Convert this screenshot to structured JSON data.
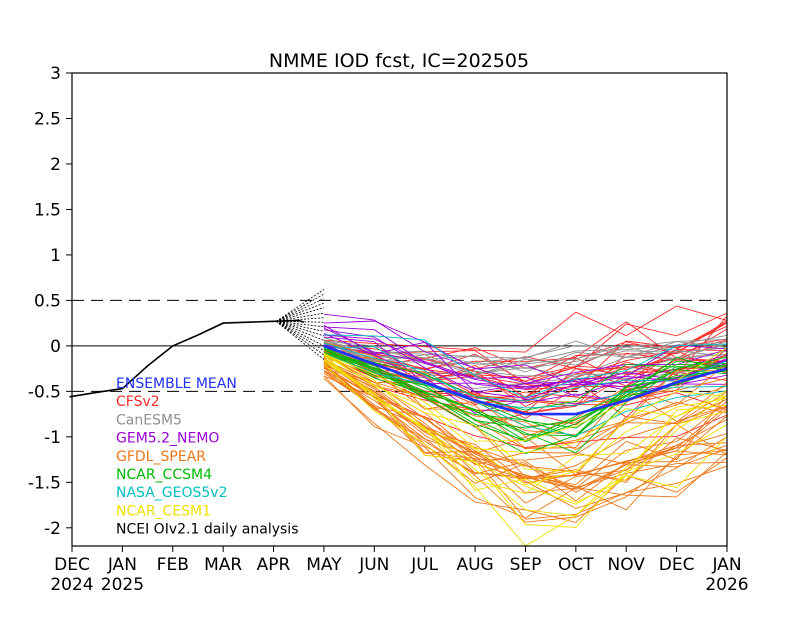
{
  "chart_data": {
    "type": "line",
    "title": "NMME IOD fcst, IC=202505",
    "x_categories": [
      "DEC",
      "JAN",
      "FEB",
      "MAR",
      "APR",
      "MAY",
      "JUN",
      "JUL",
      "AUG",
      "SEP",
      "OCT",
      "NOV",
      "DEC",
      "JAN"
    ],
    "x_year_labels": [
      {
        "category_index": 0,
        "text": "2024"
      },
      {
        "category_index": 1,
        "text": "2025"
      },
      {
        "category_index": 13,
        "text": "2026"
      }
    ],
    "ylim": [
      -2.2,
      3
    ],
    "y_ticks": [
      "3",
      "2.5",
      "2",
      "1.5",
      "1",
      "0.5",
      "0",
      "-0.5",
      "-1",
      "-1.5",
      "-2"
    ],
    "y_tick_values": [
      3,
      2.5,
      2,
      1.5,
      1,
      0.5,
      0,
      -0.5,
      -1,
      -1.5,
      -2
    ],
    "reference_lines": [
      {
        "y": 0.5,
        "style": "dashed"
      },
      {
        "y": 0,
        "style": "solid"
      },
      {
        "y": -0.5,
        "style": "dashed"
      }
    ],
    "observed_daily": {
      "name": "NCEI OIv2.1 daily analysis",
      "color": "#000000",
      "points": [
        [
          -0.05,
          -0.56
        ],
        [
          0.5,
          -0.51
        ],
        [
          1,
          -0.47
        ],
        [
          1.5,
          -0.22
        ],
        [
          2,
          0.0
        ],
        [
          2.5,
          0.12
        ],
        [
          3,
          0.25
        ],
        [
          3.5,
          0.26
        ],
        [
          4,
          0.27
        ],
        [
          4.5,
          0.28
        ],
        [
          4.6,
          0.26
        ]
      ]
    },
    "persistence_fan": {
      "origin": [
        4.05,
        0.27
      ],
      "end_x": 5,
      "end_y_values": [
        0.62,
        0.57,
        0.52,
        0.47,
        0.42,
        0.36,
        0.31,
        0.26,
        0.21,
        0.16,
        0.11,
        0.06,
        0.0,
        -0.05,
        -0.1,
        -0.15
      ]
    },
    "models": [
      {
        "name": "CFSv2",
        "color": "#ff2a2a",
        "month_x": [
          5,
          6,
          7,
          8,
          9,
          10,
          11,
          12,
          13
        ],
        "ensemble_count": 24,
        "mean": [
          -0.05,
          -0.25,
          -0.4,
          -0.45,
          -0.55,
          -0.45,
          -0.3,
          -0.18,
          -0.1
        ],
        "spread": [
          0.07,
          0.18,
          0.28,
          0.35,
          0.38,
          0.4,
          0.42,
          0.43,
          0.45
        ]
      },
      {
        "name": "CanESM5",
        "color": "#909090",
        "month_x": [
          5,
          6,
          7,
          8,
          9,
          10,
          11,
          12,
          13
        ],
        "ensemble_count": 10,
        "mean": [
          0.02,
          -0.08,
          -0.15,
          -0.2,
          -0.2,
          -0.15,
          -0.08,
          -0.02,
          0.02
        ],
        "spread": [
          0.07,
          0.12,
          0.16,
          0.2,
          0.2,
          0.2,
          0.18,
          0.18,
          0.18
        ]
      },
      {
        "name": "GEM5.2_NEMO",
        "color": "#9a00d8",
        "month_x": [
          5,
          6,
          7,
          8,
          9,
          10,
          11,
          12,
          13
        ],
        "ensemble_count": 10,
        "mean": [
          0.15,
          0.05,
          -0.15,
          -0.35,
          -0.45,
          -0.45,
          -0.35,
          -0.25,
          -0.15
        ],
        "spread": [
          0.22,
          0.22,
          0.25,
          0.25,
          0.22,
          0.22,
          0.2,
          0.2,
          0.2
        ]
      },
      {
        "name": "GFDL_SPEAR",
        "color": "#f07818",
        "month_x": [
          5,
          6,
          7,
          8,
          9,
          10,
          11,
          12,
          13
        ],
        "ensemble_count": 30,
        "mean": [
          -0.2,
          -0.55,
          -0.9,
          -1.2,
          -1.4,
          -1.4,
          -1.25,
          -1.05,
          -0.85
        ],
        "spread": [
          0.12,
          0.25,
          0.35,
          0.42,
          0.45,
          0.48,
          0.5,
          0.5,
          0.5
        ]
      },
      {
        "name": "NCAR_CCSM4",
        "color": "#00b800",
        "month_x": [
          5,
          6,
          7,
          8,
          9,
          10,
          11,
          12,
          13
        ],
        "ensemble_count": 10,
        "mean": [
          -0.05,
          -0.25,
          -0.5,
          -0.75,
          -0.95,
          -0.85,
          -0.45,
          -0.25,
          -0.2
        ],
        "spread": [
          0.07,
          0.15,
          0.2,
          0.25,
          0.3,
          0.3,
          0.25,
          0.2,
          0.2
        ]
      },
      {
        "name": "NASA_GEOS5v2",
        "color": "#00c0c0",
        "month_x": [
          5,
          6,
          7,
          8,
          9,
          10,
          11,
          12,
          13
        ],
        "ensemble_count": 4,
        "mean": [
          0.0,
          -0.2,
          -0.4,
          -0.6,
          -0.75,
          -0.7,
          -0.55,
          -0.4,
          -0.3
        ],
        "spread": [
          0.12,
          0.25,
          0.25,
          0.25,
          0.25,
          0.25,
          0.2,
          0.2,
          0.2
        ]
      },
      {
        "name": "NCAR_CESM1",
        "color": "#f0e000",
        "month_x": [
          5,
          6,
          7,
          8,
          9,
          10,
          11,
          12,
          13
        ],
        "ensemble_count": 10,
        "mean": [
          -0.1,
          -0.45,
          -0.8,
          -1.2,
          -1.45,
          -1.3,
          -0.95,
          -0.65,
          -0.45
        ],
        "spread": [
          0.07,
          0.2,
          0.3,
          0.4,
          0.5,
          0.5,
          0.45,
          0.4,
          0.4
        ]
      }
    ],
    "ensemble_mean": {
      "name": "ENSEMBLE MEAN",
      "color": "#2030ff",
      "month_x": [
        5,
        6,
        7,
        8,
        9,
        10,
        11,
        12,
        13
      ],
      "values": [
        0.0,
        -0.2,
        -0.4,
        -0.6,
        -0.75,
        -0.75,
        -0.6,
        -0.4,
        -0.25
      ]
    },
    "legend": {
      "placement": "bottom-left",
      "entries": [
        {
          "label": "ENSEMBLE MEAN",
          "color": "#2030ff"
        },
        {
          "label": "CFSv2",
          "color": "#ff2a2a"
        },
        {
          "label": "CanESM5",
          "color": "#909090"
        },
        {
          "label": "GEM5.2_NEMO",
          "color": "#9a00d8"
        },
        {
          "label": "GFDL_SPEAR",
          "color": "#f07818"
        },
        {
          "label": "NCAR_CCSM4",
          "color": "#00b800"
        },
        {
          "label": "NASA_GEOS5v2",
          "color": "#00c0c0"
        },
        {
          "label": "NCAR_CESM1",
          "color": "#f0e000"
        },
        {
          "label": "NCEI OIv2.1 daily analysis",
          "color": "#000000"
        }
      ]
    }
  }
}
